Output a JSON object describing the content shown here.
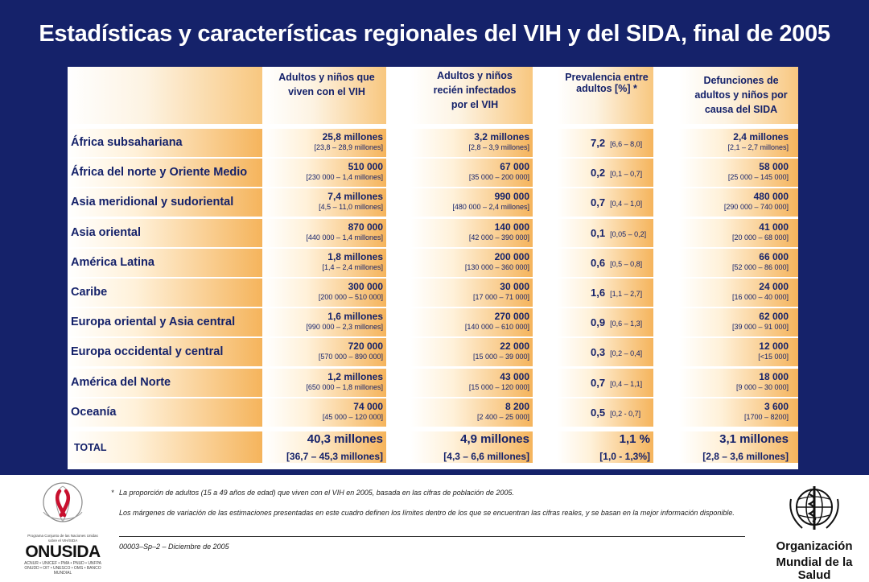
{
  "title": "Estadísticas y características regionales del VIH y del SIDA, final de 2005",
  "headers": {
    "living": "Adultos y niños que viven con el VIH",
    "new": "Adultos y niños recién infectados por el VIH",
    "prev": "Prevalencia entre adultos [%] *",
    "deaths": "Defunciones de adultos y niños por causa del SIDA"
  },
  "rows": [
    {
      "region": "África subsahariana",
      "living": "25,8 millones",
      "living_r": "[23,8 – 28,9 millones]",
      "new": "3,2 millones",
      "new_r": "[2,8 – 3,9 millones]",
      "prev": "7,2",
      "prev_r": "[6,6 – 8,0]",
      "deaths": "2,4 millones",
      "deaths_r": "[2,1 – 2,7 millones]"
    },
    {
      "region": "África del norte y Oriente Medio",
      "living": "510 000",
      "living_r": "[230 000 – 1,4 millones]",
      "new": "67 000",
      "new_r": "[35 000 – 200 000]",
      "prev": "0,2",
      "prev_r": "[0,1 – 0,7]",
      "deaths": "58 000",
      "deaths_r": "[25 000 – 145 000]"
    },
    {
      "region": "Asia meridional y sudoriental",
      "living": "7,4 millones",
      "living_r": "[4,5 – 11,0 millones]",
      "new": "990 000",
      "new_r": "[480 000 – 2,4 millones]",
      "prev": "0,7",
      "prev_r": "[0,4 – 1,0]",
      "deaths": "480 000",
      "deaths_r": "[290 000 – 740 000]"
    },
    {
      "region": "Asia oriental",
      "living": "870 000",
      "living_r": "[440 000 – 1,4 millones]",
      "new": "140 000",
      "new_r": "[42 000 – 390 000]",
      "prev": "0,1",
      "prev_r": "[0,05 – 0,2]",
      "deaths": "41 000",
      "deaths_r": "[20 000 – 68 000]"
    },
    {
      "region": "América Latina",
      "living": "1,8 millones",
      "living_r": "[1,4 – 2,4 millones]",
      "new": "200 000",
      "new_r": "[130 000 – 360 000]",
      "prev": "0,6",
      "prev_r": "[0,5 – 0,8]",
      "deaths": "66 000",
      "deaths_r": "[52 000 – 86 000]"
    },
    {
      "region": "Caribe",
      "living": "300 000",
      "living_r": "[200 000 – 510 000]",
      "new": "30 000",
      "new_r": "[17 000 – 71 000]",
      "prev": "1,6",
      "prev_r": "[1,1 – 2,7]",
      "deaths": "24 000",
      "deaths_r": "[16 000 – 40 000]"
    },
    {
      "region": "Europa oriental y Asia central",
      "living": "1,6 millones",
      "living_r": "[990 000 – 2,3 millones]",
      "new": "270 000",
      "new_r": "[140 000 – 610 000]",
      "prev": "0,9",
      "prev_r": "[0,6 – 1,3]",
      "deaths": "62 000",
      "deaths_r": "[39 000 – 91 000]"
    },
    {
      "region": "Europa occidental y central",
      "living": "720 000",
      "living_r": "[570 000 – 890 000]",
      "new": "22 000",
      "new_r": "[15 000 – 39 000]",
      "prev": "0,3",
      "prev_r": "[0,2 – 0,4]",
      "deaths": "12 000",
      "deaths_r": "[<15 000]"
    },
    {
      "region": "América del Norte",
      "living": "1,2 millones",
      "living_r": "[650 000 – 1,8 millones]",
      "new": "43 000",
      "new_r": "[15 000 – 120 000]",
      "prev": "0,7",
      "prev_r": "[0,4 – 1,1]",
      "deaths": "18 000",
      "deaths_r": "[9 000 – 30 000]"
    },
    {
      "region": "Oceanía",
      "living": "74 000",
      "living_r": "[45 000 – 120 000]",
      "new": "8 200",
      "new_r": "[2 400 – 25 000]",
      "prev": "0,5",
      "prev_r": "[0,2 - 0,7]",
      "deaths": "3 600",
      "deaths_r": "[1700 – 8200]"
    }
  ],
  "total": {
    "label": "TOTAL",
    "living": "40,3 millones",
    "living_r": "[36,7 – 45,3 millones]",
    "new": "4,9 millones",
    "new_r": "[4,3 – 6,6 millones]",
    "prev": "1,1 %",
    "prev_r": "[1,0 - 1,3%]",
    "deaths": "3,1 millones",
    "deaths_r": "[2,8 – 3,6 millones]"
  },
  "footnotes": {
    "asterisk": "*",
    "note1": "La proporción de adultos (15 a 49 años de edad) que viven con el VIH en 2005, basada en las cifras de población de 2005.",
    "note2": "Los márgenes de variación de las estimaciones presentadas en este cuadro definen los límites dentro de los que se encuentran las cifras reales, y se basan en la mejor información disponible.",
    "code": "00003–Sp–2 – Diciembre de 2005"
  },
  "logos": {
    "onusida": "ONUSIDA",
    "onusida_small1": "ACNUR • UNICEF • PMA • PNUD • UNFPA",
    "onusida_small2": "ONUDD • OIT • UNESCO • OMS • BANCO MUNDIAL",
    "oms_line1": "Organización",
    "oms_line2": "Mundial de la Salud"
  },
  "colors": {
    "navy": "#15226a",
    "bar_end": "#f5b45c",
    "ribbon": "#c8102e"
  }
}
